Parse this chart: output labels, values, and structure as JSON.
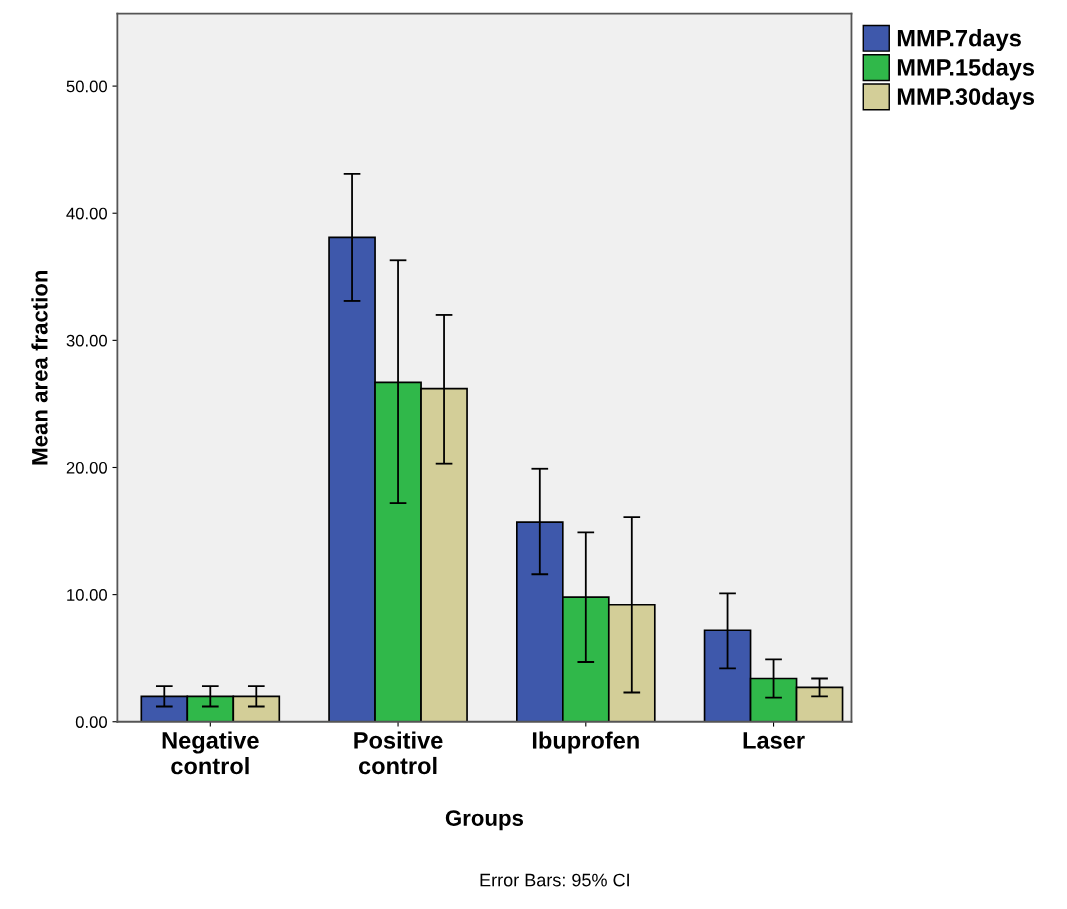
{
  "chart_data": {
    "type": "bar",
    "xlabel": "Groups",
    "ylabel": "Mean area fraction",
    "categories": [
      "Negative\ncontrol",
      "Positive\ncontrol",
      "Ibuprofen",
      "Laser"
    ],
    "series": [
      {
        "name": "MMP.7days",
        "color": "#3e58ab",
        "values": [
          2.0,
          38.1,
          15.7,
          7.2
        ],
        "errors": [
          [
            1.2,
            2.8
          ],
          [
            33.1,
            43.1
          ],
          [
            11.6,
            19.9
          ],
          [
            4.2,
            10.1
          ]
        ]
      },
      {
        "name": "MMP.15days",
        "color": "#30b84a",
        "values": [
          2.0,
          26.7,
          9.8,
          3.4
        ],
        "errors": [
          [
            1.2,
            2.8
          ],
          [
            17.2,
            36.3
          ],
          [
            4.7,
            14.9
          ],
          [
            1.9,
            4.9
          ]
        ]
      },
      {
        "name": "MMP.30days",
        "color": "#d3ce98",
        "values": [
          2.0,
          26.2,
          9.2,
          2.7
        ],
        "errors": [
          [
            1.2,
            2.8
          ],
          [
            20.3,
            32.0
          ],
          [
            2.3,
            16.1
          ],
          [
            2.0,
            3.4
          ]
        ]
      }
    ],
    "ylim": [
      0,
      55.7
    ],
    "yticks": [
      {
        "value": 0,
        "label": "0.00"
      },
      {
        "value": 10,
        "label": "10.00"
      },
      {
        "value": 20,
        "label": "20.00"
      },
      {
        "value": 30,
        "label": "30.00"
      },
      {
        "value": 40,
        "label": "40.00"
      },
      {
        "value": 50,
        "label": "50.00"
      }
    ],
    "grid": false,
    "legend": "top right",
    "annotations": [
      "Error Bars: 95% CI"
    ]
  }
}
